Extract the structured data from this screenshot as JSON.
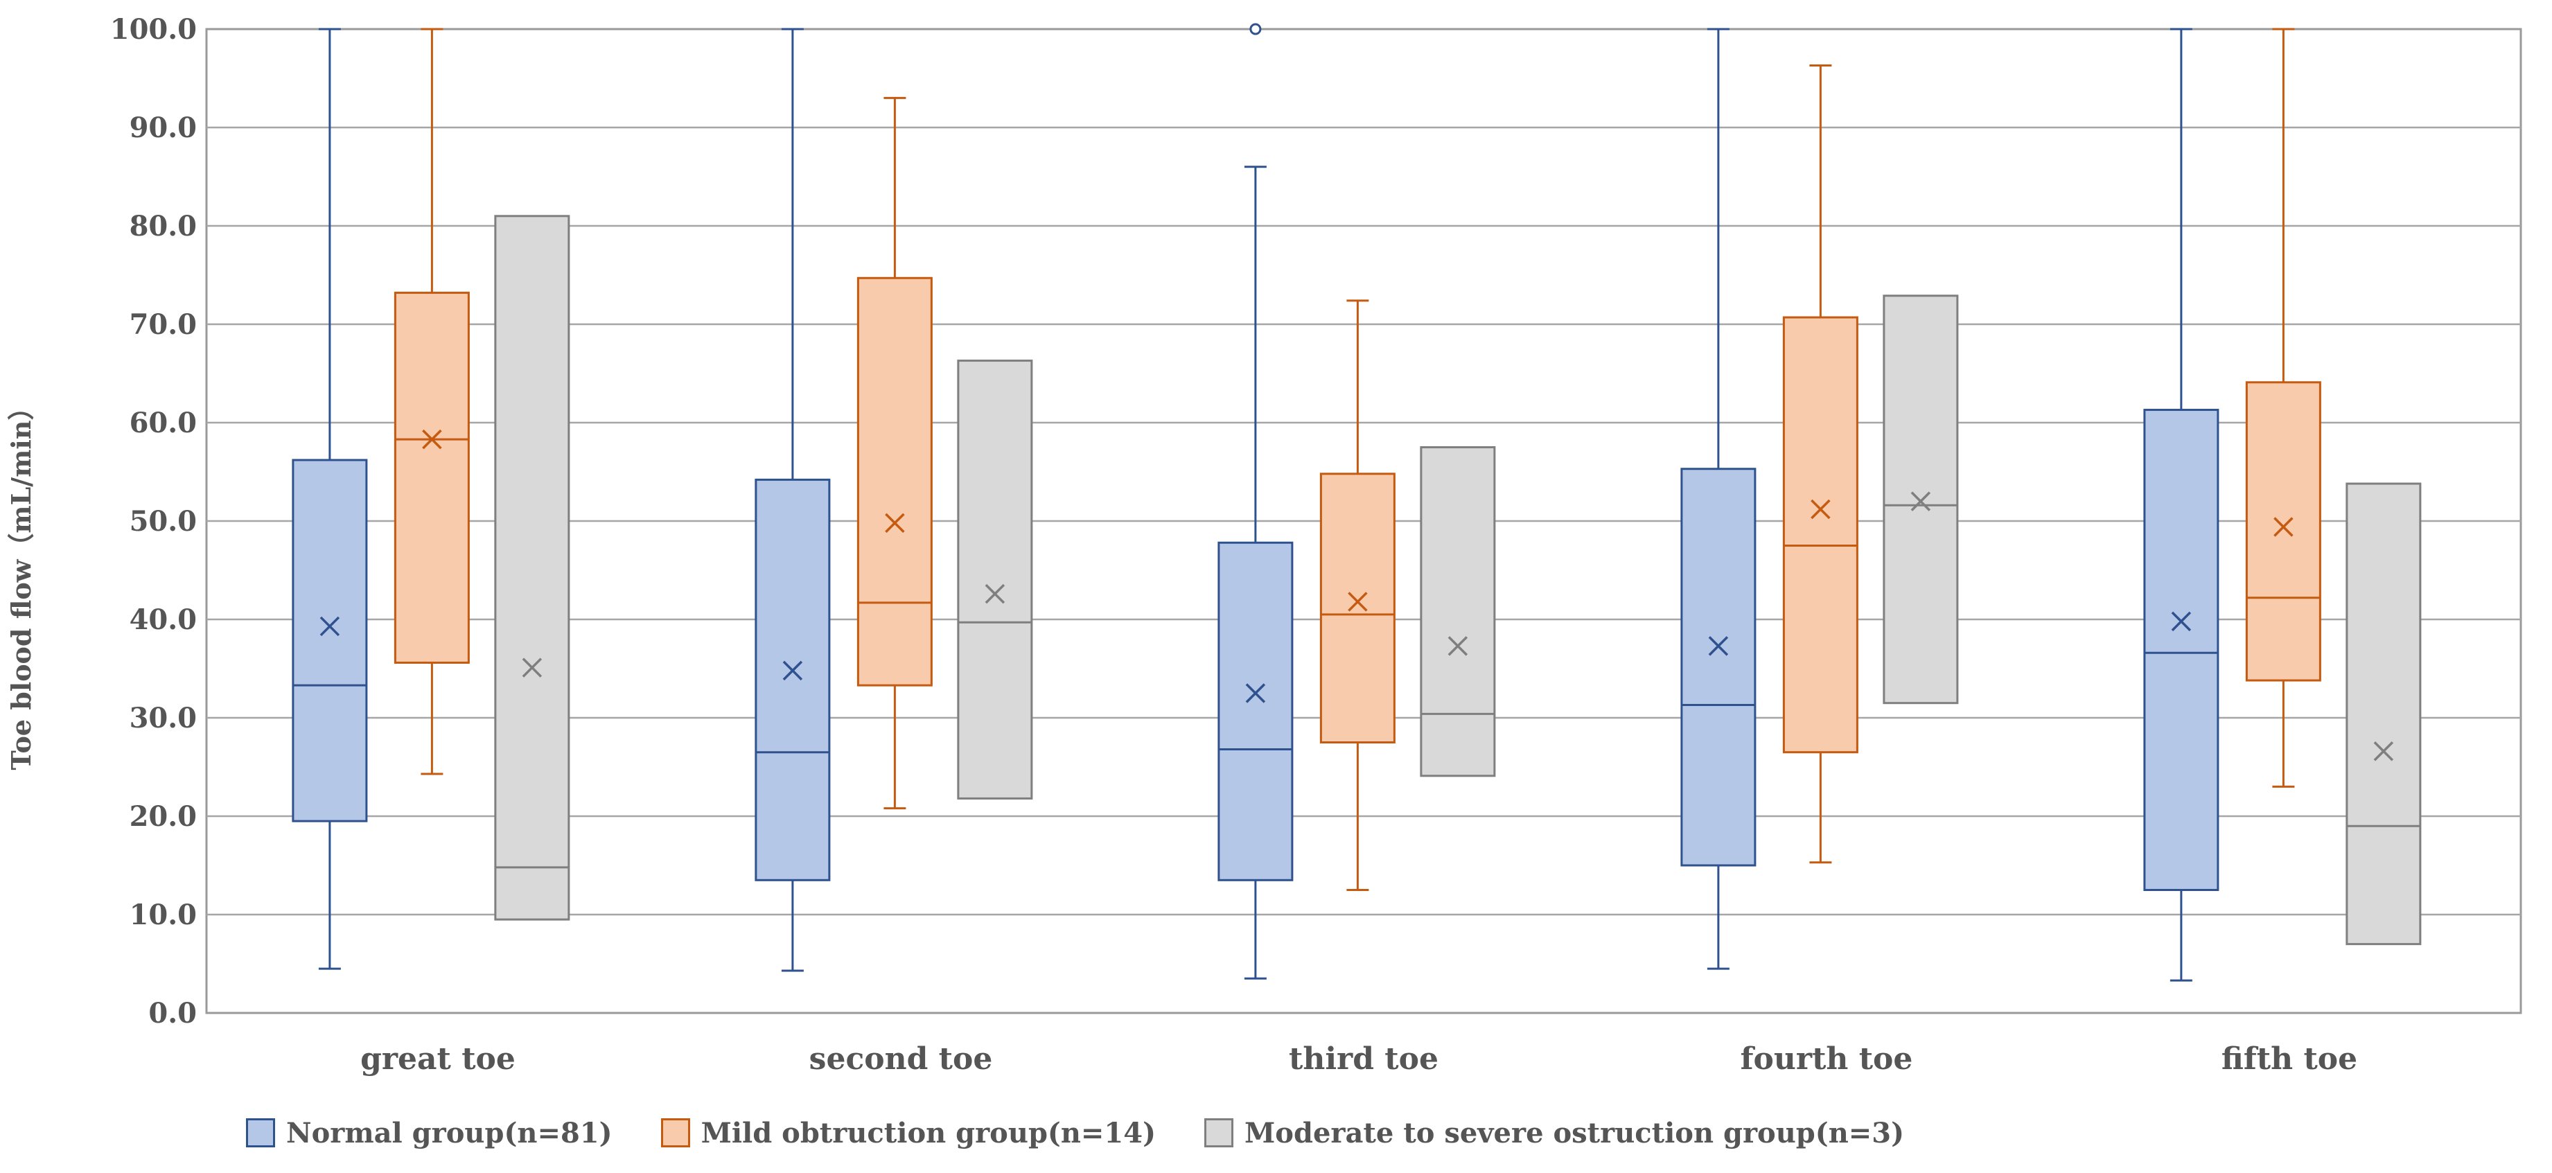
{
  "chart_data": {
    "type": "box",
    "title": "",
    "xlabel": "",
    "ylabel": "Toe blood flow（mL/min）",
    "ylim": [
      0,
      100
    ],
    "yticks": [
      "0.0",
      "10.0",
      "20.0",
      "30.0",
      "40.0",
      "50.0",
      "60.0",
      "70.0",
      "80.0",
      "90.0",
      "100.0"
    ],
    "grid": true,
    "legend_position": "bottom",
    "categories": [
      "great toe",
      "second toe",
      "third toe",
      "fourth toe",
      "fifth toe"
    ],
    "series": [
      {
        "name": "Normal group(n=81)",
        "color": "#2f528f",
        "fill": "#b4c7e7",
        "boxes": [
          {
            "min": 4.5,
            "q1": 19.5,
            "median": 33.3,
            "q3": 56.2,
            "max": 100.0,
            "mean": 39.3
          },
          {
            "min": 4.3,
            "q1": 13.5,
            "median": 26.5,
            "q3": 54.2,
            "max": 100.0,
            "mean": 34.8
          },
          {
            "min": 3.5,
            "q1": 13.5,
            "median": 26.8,
            "q3": 47.8,
            "max": 86.0,
            "mean": 32.5,
            "outliers": [
              100.0
            ]
          },
          {
            "min": 4.5,
            "q1": 15.0,
            "median": 31.3,
            "q3": 55.3,
            "max": 100.0,
            "mean": 37.3
          },
          {
            "min": 3.3,
            "q1": 12.5,
            "median": 36.6,
            "q3": 61.3,
            "max": 100.0,
            "mean": 39.8
          }
        ]
      },
      {
        "name": "Mild obtruction group(n=14)",
        "color": "#c55a11",
        "fill": "#f8cbad",
        "boxes": [
          {
            "min": 24.3,
            "q1": 35.6,
            "median": 58.3,
            "q3": 73.2,
            "max": 100.0,
            "mean": 58.3
          },
          {
            "min": 20.8,
            "q1": 33.3,
            "median": 41.7,
            "q3": 74.7,
            "max": 93.0,
            "mean": 49.8
          },
          {
            "min": 12.5,
            "q1": 27.5,
            "median": 40.5,
            "q3": 54.8,
            "max": 72.4,
            "mean": 41.8
          },
          {
            "min": 15.3,
            "q1": 26.5,
            "median": 47.5,
            "q3": 70.7,
            "max": 96.3,
            "mean": 51.2
          },
          {
            "min": 23.0,
            "q1": 33.8,
            "median": 42.2,
            "q3": 64.1,
            "max": 100.0,
            "mean": 49.4
          }
        ]
      },
      {
        "name": "Moderate to severe ostruction group(n=3)",
        "color": "#7f7f7f",
        "fill": "#d9d9d9",
        "boxes": [
          {
            "min": 9.5,
            "q1": 9.5,
            "median": 14.8,
            "q3": 81.0,
            "max": 81.0,
            "mean": 35.1
          },
          {
            "min": 21.8,
            "q1": 21.8,
            "median": 39.7,
            "q3": 66.3,
            "max": 66.3,
            "mean": 42.6
          },
          {
            "min": 24.1,
            "q1": 24.1,
            "median": 30.4,
            "q3": 57.5,
            "max": 57.5,
            "mean": 37.3
          },
          {
            "min": 31.5,
            "q1": 31.5,
            "median": 51.6,
            "q3": 72.9,
            "max": 72.9,
            "mean": 52.0
          },
          {
            "min": 7.0,
            "q1": 7.0,
            "median": 19.0,
            "q3": 53.8,
            "max": 53.8,
            "mean": 26.6
          }
        ]
      }
    ]
  }
}
